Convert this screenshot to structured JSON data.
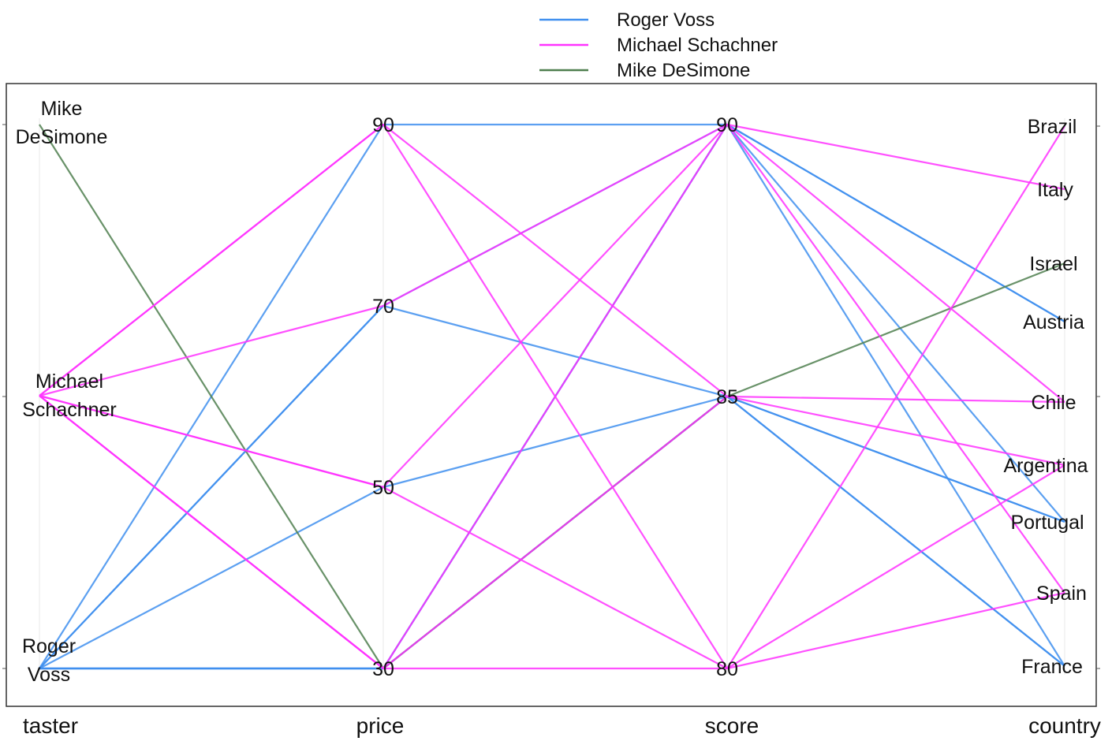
{
  "chart_data": {
    "type": "parallel_coordinates",
    "title": "",
    "axes": [
      {
        "name": "taster",
        "kind": "categorical",
        "ticks": [
          "Mike DeSimone",
          "Michael Schachner",
          "Roger Voss"
        ]
      },
      {
        "name": "price",
        "kind": "numeric",
        "ticks": [
          90,
          70,
          50,
          30
        ]
      },
      {
        "name": "score",
        "kind": "numeric",
        "ticks": [
          90,
          85,
          80
        ]
      },
      {
        "name": "country",
        "kind": "categorical",
        "ticks": [
          "Brazil",
          "Italy",
          "Israel",
          "Austria",
          "Chile",
          "Argentina",
          "Portugal",
          "Spain",
          "France"
        ]
      }
    ],
    "legend": {
      "position": "top",
      "entries": [
        {
          "name": "Roger Voss",
          "color": "#3f8fef"
        },
        {
          "name": "Michael Schachner",
          "color": "#ff33ff"
        },
        {
          "name": "Mike DeSimone",
          "color": "#4f7f4f"
        }
      ]
    },
    "series": [
      {
        "name": "Mike DeSimone",
        "records": [
          {
            "price": 30,
            "score": 85,
            "country": "Israel"
          }
        ]
      },
      {
        "name": "Michael Schachner",
        "records": [
          {
            "price": 90,
            "score": 80,
            "country": "Spain"
          },
          {
            "price": 90,
            "score": 85,
            "country": "Argentina"
          },
          {
            "price": 70,
            "score": 90,
            "country": "Italy"
          },
          {
            "price": 50,
            "score": 90,
            "country": "Chile"
          },
          {
            "price": 50,
            "score": 80,
            "country": "Brazil"
          },
          {
            "price": 30,
            "score": 85,
            "country": "Chile"
          },
          {
            "price": 30,
            "score": 90,
            "country": "Spain"
          },
          {
            "price": 30,
            "score": 80,
            "country": "Argentina"
          }
        ]
      },
      {
        "name": "Roger Voss",
        "records": [
          {
            "price": 90,
            "score": 90,
            "country": "Austria"
          },
          {
            "price": 70,
            "score": 90,
            "country": "France"
          },
          {
            "price": 70,
            "score": 85,
            "country": "Portugal"
          },
          {
            "price": 50,
            "score": 85,
            "country": "France"
          },
          {
            "price": 30,
            "score": 85,
            "country": "France"
          },
          {
            "price": 30,
            "score": 85,
            "country": "Portugal"
          },
          {
            "price": 30,
            "score": 90,
            "country": "Portugal"
          },
          {
            "price": 30,
            "score": 90,
            "country": "Austria"
          }
        ]
      }
    ]
  }
}
